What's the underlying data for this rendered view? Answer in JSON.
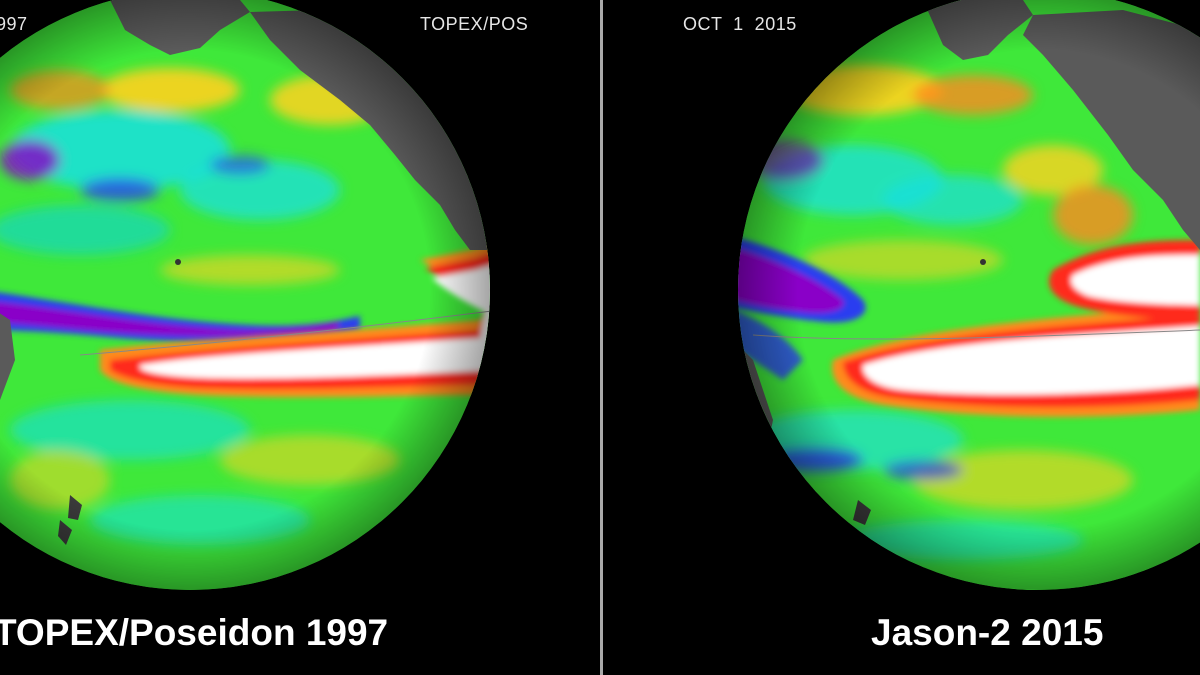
{
  "left_panel": {
    "top_left_label": "997",
    "top_right_label": "TOPEX/POS",
    "caption": "TOPEX/Poseidon 1997"
  },
  "right_panel": {
    "top_left_label": "OCT  1  2015",
    "caption": "Jason-2 2015"
  },
  "colors": {
    "background": "#000000",
    "land": "#5a5a5a",
    "divider": "#a9a9a9",
    "anomaly_high": "#ffffff",
    "anomaly_warm": "#ff2a1a",
    "anomaly_mild": "#ffd21e",
    "anomaly_neutral": "#3fe83a",
    "anomaly_cool": "#18e0e0",
    "anomaly_cold": "#2a3cf0",
    "anomaly_low": "#8a00c8"
  }
}
